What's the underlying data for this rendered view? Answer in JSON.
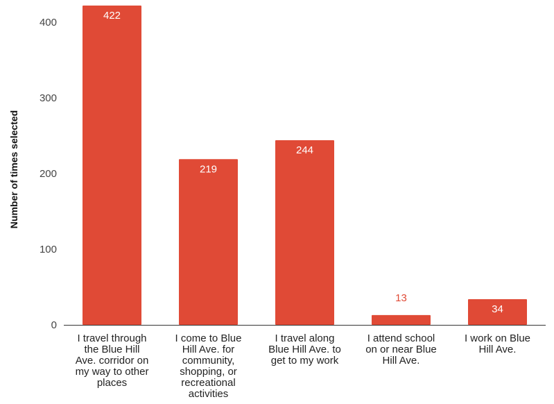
{
  "chart_data": {
    "type": "bar",
    "title": "",
    "xlabel": "",
    "ylabel": "Number of times selected",
    "ylim": [
      0,
      400
    ],
    "yticks": [
      0,
      100,
      200,
      300,
      400
    ],
    "grid": false,
    "legend": "none",
    "categories": [
      [
        "I travel through",
        "the Blue Hill",
        "Ave. corridor on",
        "my way to other",
        "places"
      ],
      [
        "I come to Blue",
        "Hill Ave. for",
        "community,",
        "shopping, or",
        "recreational",
        "activities"
      ],
      [
        "I travel along",
        "Blue Hill Ave. to",
        "get to my work"
      ],
      [
        "I attend school",
        "on or near Blue",
        "Hill Ave."
      ],
      [
        "I work on Blue",
        "Hill Ave."
      ]
    ],
    "values": [
      422,
      219,
      244,
      13,
      34
    ],
    "value_labels": [
      "422",
      "219",
      "244",
      "13",
      "34"
    ],
    "colors": {
      "bar": "#E04A36",
      "label_inside": "#ffffff",
      "label_outside": "#E04A36",
      "axis": "#333333"
    }
  }
}
